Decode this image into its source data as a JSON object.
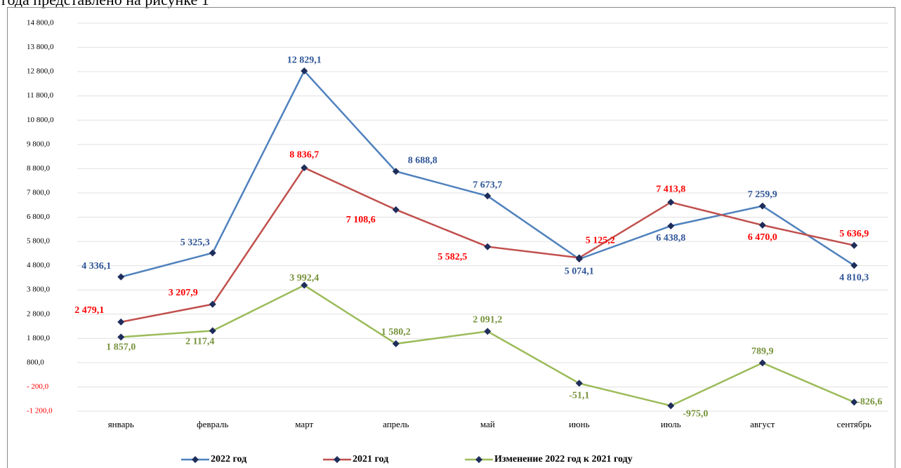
{
  "caption": "года представлено на рисунке 1",
  "chart_data": {
    "type": "line",
    "categories": [
      "январь",
      "февраль",
      "март",
      "апрель",
      "май",
      "июнь",
      "июль",
      "август",
      "сентябрь"
    ],
    "series": [
      {
        "name": "2022 год",
        "color": "#4f81bd",
        "label_color": "#2f5597",
        "values": [
          4336.1,
          5325.3,
          12829.1,
          8688.8,
          7673.7,
          5074.1,
          6438.8,
          7259.9,
          4810.3
        ],
        "value_labels": [
          "4 336,1",
          "5 325,3",
          "12 829,1",
          "8 688,8",
          "7 673,7",
          "5 074,1",
          "6 438,8",
          "7 259,9",
          "4 810,3"
        ]
      },
      {
        "name": "2021 год",
        "color": "#c0504d",
        "label_color": "#ff0000",
        "values": [
          2479.1,
          3207.9,
          8836.7,
          7108.6,
          5582.5,
          5125.2,
          7413.8,
          6470.0,
          5636.9
        ],
        "value_labels": [
          "2 479,1",
          "3 207,9",
          "8 836,7",
          "7 108,6",
          "5 582,5",
          "5 125,2",
          "7 413,8",
          "6 470,0",
          "5 636,9"
        ]
      },
      {
        "name": "Изменение 2022 год к 2021 году",
        "color": "#9bbb59",
        "label_color": "#77933c",
        "values": [
          1857.0,
          2117.4,
          3992.4,
          1580.2,
          2091.2,
          -51.1,
          -975.0,
          789.9,
          -826.6
        ],
        "value_labels": [
          "1 857,0",
          "2 117,4",
          "3 992,4",
          "1 580,2",
          "2 091,2",
          "-51,1",
          "-975,0",
          "789,9",
          "-826,6"
        ]
      }
    ],
    "ylim": [
      -1200,
      14800
    ],
    "yticks": [
      {
        "value": -1200,
        "label": "-1 200,0"
      },
      {
        "value": -200,
        "label": "- 200,0"
      },
      {
        "value": 800,
        "label": "800,0"
      },
      {
        "value": 1800,
        "label": "1 800,0"
      },
      {
        "value": 2800,
        "label": "2 800,0"
      },
      {
        "value": 3800,
        "label": "3 800,0"
      },
      {
        "value": 4800,
        "label": "4 800,0"
      },
      {
        "value": 5800,
        "label": "5 800,0"
      },
      {
        "value": 6800,
        "label": "6 800,0"
      },
      {
        "value": 7800,
        "label": "7 800,0"
      },
      {
        "value": 8800,
        "label": "8 800,0"
      },
      {
        "value": 9800,
        "label": "9 800,0"
      },
      {
        "value": 10800,
        "label": "10 800,0"
      },
      {
        "value": 11800,
        "label": "11 800,0"
      },
      {
        "value": 12800,
        "label": "12 800,0"
      },
      {
        "value": 13800,
        "label": "13 800,0"
      },
      {
        "value": 14800,
        "label": "14 800,0"
      }
    ],
    "grid": true,
    "marker_color": "#1f2d5a",
    "legend": "bottom"
  }
}
